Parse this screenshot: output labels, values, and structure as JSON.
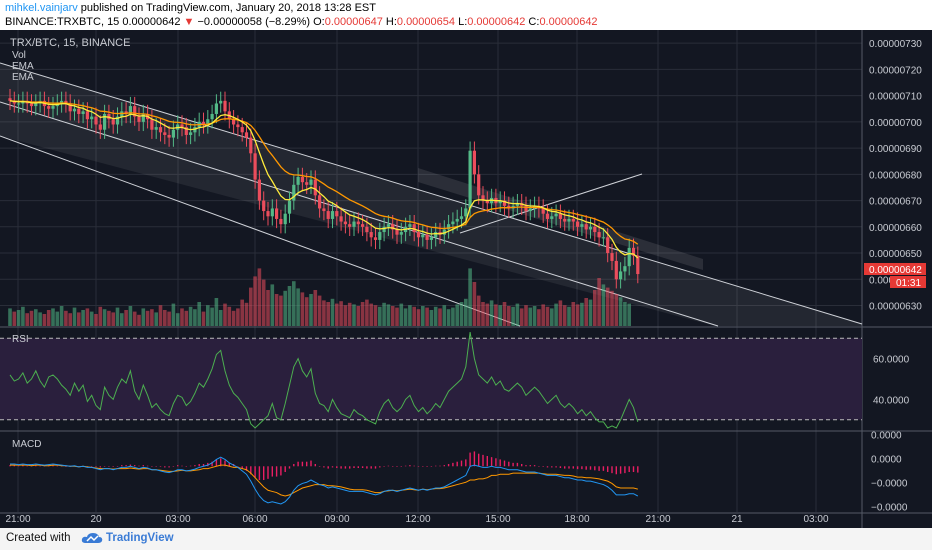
{
  "header": {
    "user": "mihkel.vainjarv",
    "published_text": " published on TradingView.com, January 20, 2018 13:28 EST",
    "symbol_line": "BINANCE:TRXBTC, 15  0.00000642",
    "change_arrow": "▼",
    "change_text": " −0.00000058 (−8.29%)",
    "o_label": " O:",
    "o_value": "0.00000647",
    "h_label": " H:",
    "h_value": "0.00000654",
    "l_label": " L:",
    "l_value": "0.00000642",
    "c_label": " C:",
    "c_value": "0.00000642"
  },
  "legend": {
    "pair": "TRX/BTC, 15, BINANCE",
    "vol": "Vol",
    "ema1": "EMA",
    "ema2": "EMA"
  },
  "price_badge": {
    "value": "0.00000642",
    "countdown": "01:31"
  },
  "footer": {
    "created": "Created with",
    "brand": "TradingView"
  },
  "chart_data": [
    {
      "type": "candlestick",
      "panel": "price",
      "ylim": [
        6.222e-06,
        7.35e-06
      ],
      "yticks": [
        {
          "value": 6.3e-06,
          "label": "0.00000630"
        },
        {
          "value": 6.4e-06,
          "label": "0.00000640"
        },
        {
          "value": 6.5e-06,
          "label": "0.00000650"
        },
        {
          "value": 6.6e-06,
          "label": "0.00000660"
        },
        {
          "value": 6.7e-06,
          "label": "0.00000670"
        },
        {
          "value": 6.8e-06,
          "label": "0.00000680"
        },
        {
          "value": 6.9e-06,
          "label": "0.00000690"
        },
        {
          "value": 7e-06,
          "label": "0.00000700"
        },
        {
          "value": 7.1e-06,
          "label": "0.00000710"
        },
        {
          "value": 7.2e-06,
          "label": "0.00000720"
        },
        {
          "value": 7.3e-06,
          "label": "0.00000730"
        }
      ],
      "xticks": [
        "21:00",
        "20",
        "03:00",
        "06:00",
        "09:00",
        "12:00",
        "15:00",
        "18:00",
        "21:00",
        "21",
        "03:00"
      ],
      "legend": [
        "Vol",
        "EMA",
        "EMA"
      ],
      "colors": {
        "up": "#53b987",
        "down": "#eb4d5c",
        "ema_fast": "#ffeb3b",
        "ema_slow": "#ff9800",
        "channel": "#ffffff"
      },
      "grid": true,
      "close": [
        7.08,
        7.07,
        7.07,
        7.08,
        7.07,
        7.06,
        7.07,
        7.08,
        7.06,
        7.05,
        7.06,
        7.07,
        7.08,
        7.07,
        7.04,
        7.05,
        7.03,
        7.04,
        7.01,
        7.02,
        6.99,
        6.97,
        7.03,
        7.01,
        6.99,
        7.02,
        7.04,
        7.03,
        7.06,
        7.02,
        7.0,
        7.03,
        7.01,
        6.97,
        6.98,
        6.96,
        6.95,
        6.94,
        6.97,
        6.99,
        6.98,
        6.95,
        6.96,
        6.98,
        7.0,
        6.99,
        7.01,
        7.03,
        7.07,
        7.08,
        7.04,
        7.01,
        6.99,
        6.98,
        6.96,
        6.94,
        6.88,
        6.78,
        6.7,
        6.66,
        6.64,
        6.67,
        6.63,
        6.61,
        6.65,
        6.7,
        6.76,
        6.79,
        6.77,
        6.76,
        6.78,
        6.72,
        6.67,
        6.66,
        6.63,
        6.66,
        6.64,
        6.62,
        6.61,
        6.6,
        6.62,
        6.61,
        6.6,
        6.58,
        6.56,
        6.55,
        6.58,
        6.6,
        6.61,
        6.59,
        6.57,
        6.58,
        6.6,
        6.61,
        6.58,
        6.56,
        6.57,
        6.55,
        6.56,
        6.58,
        6.57,
        6.59,
        6.61,
        6.62,
        6.63,
        6.64,
        6.67,
        6.89,
        6.8,
        6.72,
        6.7,
        6.69,
        6.71,
        6.69,
        6.7,
        6.68,
        6.67,
        6.68,
        6.69,
        6.68,
        6.66,
        6.67,
        6.68,
        6.67,
        6.65,
        6.63,
        6.64,
        6.65,
        6.63,
        6.62,
        6.63,
        6.62,
        6.6,
        6.61,
        6.59,
        6.6,
        6.58,
        6.56,
        6.56,
        6.5,
        6.47,
        6.4,
        6.43,
        6.45,
        6.52,
        6.49,
        6.42
      ]
    },
    {
      "type": "bar",
      "panel": "volume",
      "ylim": [
        0,
        100
      ],
      "values": [
        22,
        18,
        20,
        24,
        16,
        19,
        21,
        17,
        15,
        20,
        22,
        18,
        25,
        19,
        16,
        23,
        17,
        20,
        22,
        18,
        15,
        24,
        21,
        19,
        17,
        23,
        16,
        20,
        25,
        18,
        14,
        22,
        19,
        21,
        17,
        26,
        20,
        18,
        28,
        16,
        22,
        19,
        24,
        21,
        30,
        18,
        26,
        23,
        35,
        20,
        28,
        24,
        19,
        22,
        33,
        29,
        48,
        62,
        72,
        58,
        45,
        52,
        40,
        38,
        44,
        50,
        56,
        47,
        42,
        36,
        40,
        45,
        38,
        32,
        30,
        34,
        28,
        31,
        26,
        29,
        27,
        25,
        30,
        33,
        28,
        26,
        24,
        29,
        27,
        25,
        23,
        28,
        22,
        26,
        24,
        21,
        25,
        23,
        20,
        24,
        22,
        26,
        21,
        23,
        27,
        30,
        34,
        72,
        55,
        38,
        30,
        28,
        32,
        27,
        26,
        30,
        25,
        24,
        28,
        22,
        26,
        23,
        25,
        21,
        27,
        24,
        22,
        28,
        32,
        26,
        24,
        30,
        27,
        29,
        35,
        33,
        45,
        60,
        52,
        48,
        44,
        40,
        36,
        30,
        28
      ]
    },
    {
      "type": "line",
      "panel": "RSI",
      "title": "RSI",
      "ylim": [
        25,
        75
      ],
      "yticks": [
        {
          "value": 40,
          "label": "40.0000"
        },
        {
          "value": 60,
          "label": "60.0000"
        }
      ],
      "bands": [
        70,
        30
      ],
      "colors": {
        "line": "#4caf50",
        "band_fill": "#2a1f3d"
      },
      "values": [
        52,
        49,
        50,
        53,
        48,
        50,
        54,
        49,
        46,
        51,
        52,
        50,
        47,
        45,
        42,
        48,
        44,
        47,
        39,
        42,
        37,
        35,
        46,
        42,
        40,
        46,
        50,
        48,
        54,
        44,
        40,
        47,
        42,
        36,
        38,
        35,
        33,
        32,
        38,
        42,
        41,
        37,
        39,
        43,
        48,
        46,
        50,
        55,
        62,
        64,
        54,
        47,
        43,
        41,
        38,
        35,
        28,
        26,
        28,
        30,
        32,
        38,
        31,
        30,
        38,
        47,
        56,
        60,
        54,
        51,
        55,
        43,
        38,
        37,
        34,
        40,
        36,
        33,
        32,
        31,
        35,
        33,
        32,
        30,
        29,
        28,
        34,
        38,
        40,
        36,
        34,
        36,
        40,
        42,
        37,
        34,
        36,
        33,
        35,
        38,
        36,
        40,
        44,
        46,
        48,
        50,
        56,
        73,
        60,
        52,
        50,
        48,
        51,
        47,
        49,
        45,
        44,
        46,
        48,
        46,
        42,
        44,
        46,
        44,
        41,
        38,
        40,
        42,
        38,
        36,
        38,
        36,
        33,
        35,
        32,
        34,
        31,
        29,
        29,
        26,
        27,
        26,
        30,
        35,
        40,
        36,
        29
      ]
    },
    {
      "type": "bar",
      "panel": "MACD",
      "title": "MACD",
      "ylim": [
        -4e-07,
        3e-07
      ],
      "yticks": [
        {
          "value": 2.8e-07,
          "label": "0.0000"
        },
        {
          "value": 7e-08,
          "label": "0.0000"
        },
        {
          "value": -1.4e-07,
          "label": "−0.0000"
        },
        {
          "value": -3.5e-07,
          "label": "−0.0000"
        }
      ],
      "colors": {
        "macd": "#2196f3",
        "signal": "#ff9800",
        "hist": "#e91e63"
      },
      "histogram": [
        0.01,
        0.01,
        0.005,
        0.01,
        0.005,
        0.01,
        0.01,
        0.005,
        0.005,
        0.01,
        0.01,
        0.005,
        0.005,
        0.0,
        0.0,
        0.005,
        0.0,
        0.0,
        -0.005,
        0.0,
        -0.005,
        -0.01,
        0.0,
        0.0,
        -0.005,
        0.0,
        0.01,
        0.01,
        0.015,
        0.01,
        0.005,
        0.01,
        0.005,
        0.0,
        0.0,
        -0.005,
        -0.01,
        -0.01,
        0.0,
        0.01,
        0.005,
        0.0,
        0.005,
        0.01,
        0.02,
        0.02,
        0.03,
        0.04,
        0.06,
        0.07,
        0.05,
        0.03,
        0.02,
        0.0,
        -0.02,
        -0.04,
        -0.07,
        -0.1,
        -0.12,
        -0.12,
        -0.11,
        -0.09,
        -0.09,
        -0.08,
        -0.05,
        -0.02,
        0.02,
        0.04,
        0.04,
        0.04,
        0.05,
        0.02,
        0.0,
        -0.01,
        -0.02,
        -0.01,
        -0.015,
        -0.02,
        -0.02,
        -0.02,
        -0.015,
        -0.015,
        -0.015,
        -0.02,
        -0.02,
        -0.02,
        -0.01,
        0.0,
        0.005,
        0.0,
        -0.005,
        0.0,
        0.005,
        0.01,
        0.005,
        0.0,
        0.0,
        -0.005,
        0.0,
        0.005,
        0.005,
        0.01,
        0.02,
        0.03,
        0.04,
        0.05,
        0.06,
        0.12,
        0.13,
        0.11,
        0.1,
        0.09,
        0.08,
        0.07,
        0.06,
        0.05,
        0.04,
        0.03,
        0.03,
        0.02,
        0.01,
        0.01,
        0.01,
        0.0,
        -0.005,
        -0.01,
        -0.01,
        -0.01,
        -0.015,
        -0.02,
        -0.02,
        -0.02,
        -0.025,
        -0.025,
        -0.03,
        -0.03,
        -0.035,
        -0.04,
        -0.04,
        -0.05,
        -0.06,
        -0.07,
        -0.065,
        -0.06,
        -0.05,
        -0.05,
        -0.055
      ],
      "macd": [
        0.02,
        0.02,
        0.015,
        0.02,
        0.015,
        0.015,
        0.02,
        0.015,
        0.01,
        0.015,
        0.02,
        0.015,
        0.01,
        0.005,
        0.0,
        0.005,
        -0.005,
        0.0,
        -0.01,
        -0.01,
        -0.02,
        -0.03,
        -0.02,
        -0.02,
        -0.03,
        -0.02,
        -0.01,
        -0.01,
        0.0,
        -0.01,
        -0.02,
        -0.01,
        -0.015,
        -0.03,
        -0.03,
        -0.04,
        -0.05,
        -0.055,
        -0.045,
        -0.03,
        -0.03,
        -0.04,
        -0.035,
        -0.025,
        -0.01,
        0.0,
        0.01,
        0.03,
        0.06,
        0.08,
        0.06,
        0.03,
        0.01,
        -0.01,
        -0.04,
        -0.07,
        -0.13,
        -0.2,
        -0.26,
        -0.3,
        -0.32,
        -0.31,
        -0.32,
        -0.33,
        -0.31,
        -0.27,
        -0.21,
        -0.17,
        -0.15,
        -0.14,
        -0.12,
        -0.14,
        -0.16,
        -0.17,
        -0.19,
        -0.18,
        -0.19,
        -0.2,
        -0.21,
        -0.22,
        -0.22,
        -0.22,
        -0.22,
        -0.23,
        -0.24,
        -0.25,
        -0.24,
        -0.22,
        -0.21,
        -0.21,
        -0.22,
        -0.21,
        -0.2,
        -0.19,
        -0.2,
        -0.21,
        -0.2,
        -0.21,
        -0.2,
        -0.19,
        -0.19,
        -0.18,
        -0.16,
        -0.14,
        -0.12,
        -0.1,
        -0.08,
        0.0,
        0.01,
        0.0,
        -0.01,
        -0.01,
        0.0,
        -0.01,
        -0.01,
        -0.02,
        -0.03,
        -0.03,
        -0.03,
        -0.04,
        -0.05,
        -0.05,
        -0.05,
        -0.06,
        -0.07,
        -0.08,
        -0.08,
        -0.08,
        -0.09,
        -0.1,
        -0.1,
        -0.11,
        -0.12,
        -0.12,
        -0.13,
        -0.13,
        -0.14,
        -0.15,
        -0.16,
        -0.18,
        -0.21,
        -0.25,
        -0.25,
        -0.25,
        -0.24,
        -0.24,
        -0.26
      ],
      "signal": [
        0.01,
        0.01,
        0.01,
        0.01,
        0.01,
        0.005,
        0.01,
        0.01,
        0.005,
        0.005,
        0.01,
        0.01,
        0.005,
        0.005,
        0.0,
        0.0,
        -0.005,
        0.0,
        -0.005,
        -0.01,
        -0.015,
        -0.02,
        -0.02,
        -0.02,
        -0.025,
        -0.02,
        -0.02,
        -0.02,
        -0.015,
        -0.02,
        -0.025,
        -0.02,
        -0.02,
        -0.03,
        -0.03,
        -0.035,
        -0.04,
        -0.045,
        -0.045,
        -0.04,
        -0.035,
        -0.04,
        -0.04,
        -0.035,
        -0.03,
        -0.02,
        -0.02,
        -0.01,
        0.0,
        0.01,
        0.01,
        0.0,
        -0.01,
        -0.01,
        -0.02,
        -0.03,
        -0.06,
        -0.1,
        -0.14,
        -0.18,
        -0.21,
        -0.22,
        -0.23,
        -0.25,
        -0.26,
        -0.25,
        -0.23,
        -0.21,
        -0.19,
        -0.18,
        -0.17,
        -0.16,
        -0.16,
        -0.16,
        -0.17,
        -0.17,
        -0.175,
        -0.18,
        -0.19,
        -0.2,
        -0.205,
        -0.205,
        -0.205,
        -0.21,
        -0.22,
        -0.23,
        -0.23,
        -0.22,
        -0.215,
        -0.21,
        -0.215,
        -0.21,
        -0.205,
        -0.2,
        -0.205,
        -0.21,
        -0.2,
        -0.205,
        -0.2,
        -0.195,
        -0.195,
        -0.19,
        -0.18,
        -0.17,
        -0.16,
        -0.15,
        -0.14,
        -0.12,
        -0.12,
        -0.11,
        -0.11,
        -0.1,
        -0.08,
        -0.08,
        -0.07,
        -0.07,
        -0.07,
        -0.06,
        -0.06,
        -0.06,
        -0.06,
        -0.06,
        -0.06,
        -0.06,
        -0.065,
        -0.07,
        -0.07,
        -0.07,
        -0.075,
        -0.08,
        -0.08,
        -0.085,
        -0.095,
        -0.095,
        -0.1,
        -0.1,
        -0.105,
        -0.11,
        -0.12,
        -0.13,
        -0.15,
        -0.18,
        -0.19,
        -0.19,
        -0.19,
        -0.19,
        -0.2
      ]
    }
  ]
}
